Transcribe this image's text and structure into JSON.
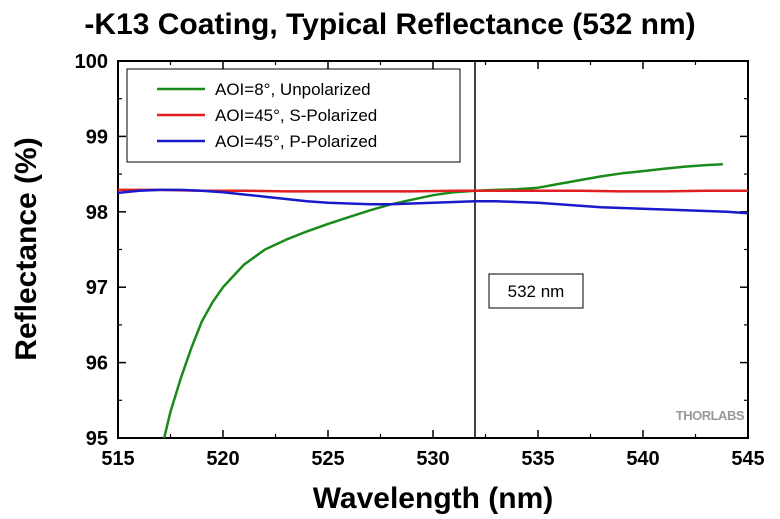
{
  "chart_data": {
    "type": "line",
    "title": "-K13 Coating, Typical Reflectance (532 nm)",
    "xlabel": "Wavelength (nm)",
    "ylabel": "Reflectance (%)",
    "xlim": [
      515,
      545
    ],
    "ylim": [
      95,
      100
    ],
    "xticks": [
      "515",
      "520",
      "525",
      "530",
      "535",
      "540",
      "545"
    ],
    "yticks": [
      "95",
      "96",
      "97",
      "98",
      "99",
      "100"
    ],
    "grid": false,
    "legend_position": "top-left",
    "annotation": {
      "x": 532,
      "label": "532 nm"
    },
    "watermark": "THORLABS",
    "series": [
      {
        "name": "AOI=8°, Unpolarized",
        "color": "#1a8a1a",
        "x": [
          517.2,
          517.5,
          518,
          518.5,
          519,
          519.5,
          520,
          520.5,
          521,
          522,
          523,
          524,
          525,
          526,
          527,
          528,
          529,
          530,
          531,
          532,
          533,
          534,
          535,
          536,
          537,
          538,
          539,
          540,
          541,
          542,
          543,
          543.8
        ],
        "y": [
          95.0,
          95.35,
          95.8,
          96.2,
          96.55,
          96.8,
          97.0,
          97.15,
          97.3,
          97.5,
          97.63,
          97.74,
          97.84,
          97.93,
          98.02,
          98.1,
          98.16,
          98.22,
          98.26,
          98.28,
          98.29,
          98.3,
          98.32,
          98.37,
          98.42,
          98.47,
          98.51,
          98.54,
          98.57,
          98.6,
          98.62,
          98.63
        ]
      },
      {
        "name": "AOI=45°, S-Polarized",
        "color": "#e02020",
        "x": [
          515,
          517,
          519,
          521,
          523,
          525,
          527,
          529,
          531,
          533,
          535,
          537,
          539,
          541,
          543,
          545
        ],
        "y": [
          98.29,
          98.29,
          98.28,
          98.28,
          98.27,
          98.27,
          98.27,
          98.27,
          98.28,
          98.28,
          98.28,
          98.28,
          98.27,
          98.27,
          98.28,
          98.28
        ]
      },
      {
        "name": "AOI=45°, P-Polarized",
        "color": "#1a1acc",
        "x": [
          515,
          516,
          517,
          518,
          519,
          520,
          521,
          522,
          523,
          524,
          525,
          526,
          527,
          528,
          529,
          530,
          531,
          532,
          533,
          534,
          535,
          536,
          537,
          538,
          539,
          540,
          541,
          542,
          543,
          544,
          545
        ],
        "y": [
          98.25,
          98.28,
          98.29,
          98.29,
          98.28,
          98.26,
          98.23,
          98.2,
          98.17,
          98.14,
          98.12,
          98.11,
          98.1,
          98.1,
          98.11,
          98.12,
          98.13,
          98.14,
          98.14,
          98.13,
          98.12,
          98.1,
          98.08,
          98.06,
          98.05,
          98.04,
          98.03,
          98.02,
          98.01,
          98.0,
          97.98
        ]
      }
    ]
  }
}
